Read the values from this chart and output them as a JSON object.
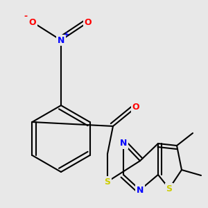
{
  "background_color": "#e8e8e8",
  "bond_color": "#000000",
  "atom_colors": {
    "N": "#0000ff",
    "O": "#ff0000",
    "S": "#cccc00",
    "C": "#000000"
  },
  "bond_width": 1.5,
  "font_size": 9,
  "figsize": [
    3.0,
    3.0
  ],
  "dpi": 100,
  "xlim": [
    0,
    300
  ],
  "ylim": [
    0,
    300
  ]
}
